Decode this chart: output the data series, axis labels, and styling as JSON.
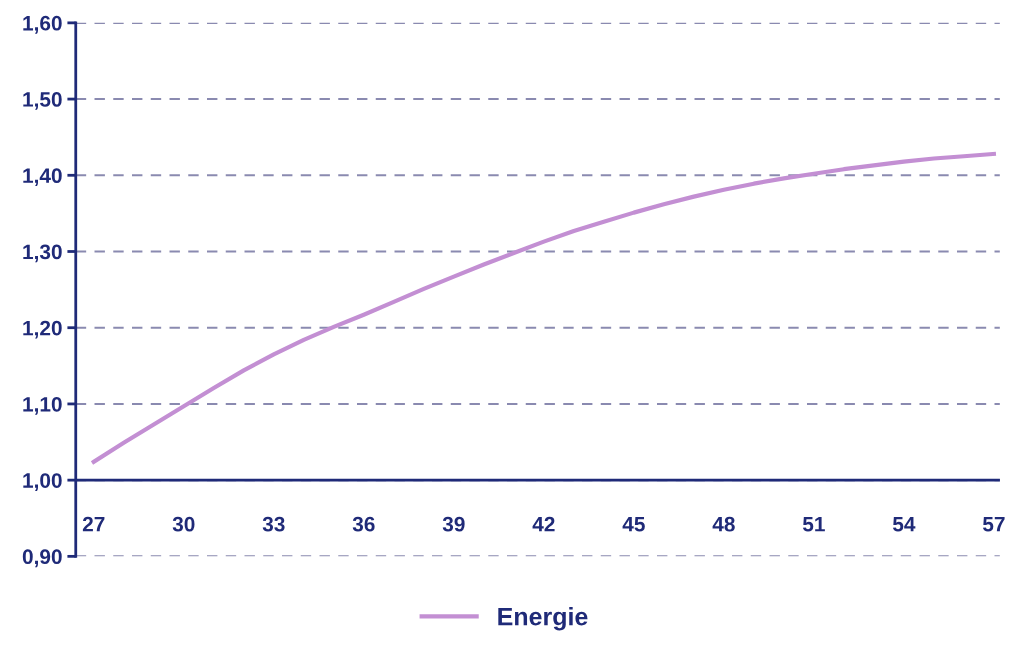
{
  "chart_data": {
    "type": "line",
    "x": [
      27,
      28,
      29,
      30,
      31,
      32,
      33,
      34,
      35,
      36,
      37,
      38,
      39,
      40,
      41,
      42,
      43,
      44,
      45,
      46,
      47,
      48,
      49,
      50,
      51,
      52,
      53,
      54,
      55,
      56,
      57
    ],
    "series": [
      {
        "name": "Energie",
        "color": "#c38fd3",
        "values": [
          1.024,
          1.049,
          1.073,
          1.097,
          1.121,
          1.144,
          1.165,
          1.184,
          1.201,
          1.217,
          1.234,
          1.251,
          1.267,
          1.283,
          1.298,
          1.313,
          1.327,
          1.339,
          1.351,
          1.362,
          1.372,
          1.381,
          1.389,
          1.396,
          1.402,
          1.408,
          1.413,
          1.418,
          1.422,
          1.425,
          1.428
        ]
      }
    ],
    "xlim": [
      26.4,
      57.2
    ],
    "ref_lines": [
      {
        "axis": "y",
        "value": 1.0,
        "color": "#1f2a78"
      }
    ],
    "xticks": [
      27,
      30,
      33,
      36,
      39,
      42,
      45,
      48,
      51,
      54,
      57
    ],
    "ylim": [
      0.9,
      1.6
    ],
    "yticks": [
      {
        "value": 0.9,
        "label": "0,90"
      },
      {
        "value": 1.0,
        "label": "1,00"
      },
      {
        "value": 1.1,
        "label": "1,10"
      },
      {
        "value": 1.2,
        "label": "1,20"
      },
      {
        "value": 1.3,
        "label": "1,30"
      },
      {
        "value": 1.4,
        "label": "1,40"
      },
      {
        "value": 1.5,
        "label": "1,50"
      },
      {
        "value": 1.6,
        "label": "1,60"
      }
    ],
    "grid": "y",
    "legend": "bottom",
    "marker": "none",
    "line_style": "solid"
  }
}
